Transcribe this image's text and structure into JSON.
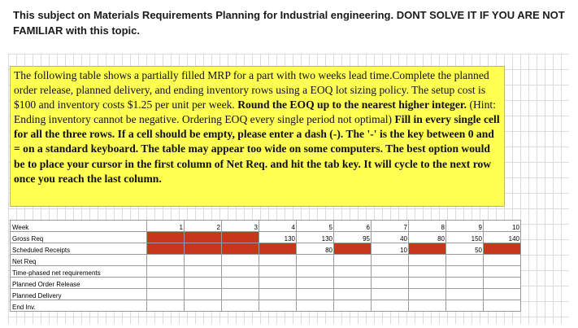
{
  "header": {
    "text": "This subject on Materials Requirements Planning for Industrial engineering. DONT SOLVE IT IF YOU ARE NOT FAMILIAR with this topic."
  },
  "problem": {
    "p1": "The following table shows a partially filled MRP for a part with two weeks lead time.Complete the planned order release, planned delivery, and ending inventory rows using a EOQ lot sizing policy. The setup cost is $100 and inventory costs $1.25 per unit per week. ",
    "b1": "Round the EOQ up to the nearest higher integer.",
    "p2": " (Hint: Ending inventory cannot be negative. Ordering EOQ every single period not optimal) ",
    "b2": "Fill in every single cell for all the three rows. If a cell should be empty, please enter a dash (-). The '-' is the key between 0 and = on a standard keyboard. The table may appear too wide on some computers. The best option would be to place your cursor in the first column of Net Req. and hit the tab key. It will cycle to the next row once you reach the last column."
  },
  "colors": {
    "problem_bg": "#ffff52",
    "red_cell": "#c8361c"
  },
  "table": {
    "rows": [
      {
        "label": "Week",
        "cells": [
          "1",
          "2",
          "3",
          "4",
          "5",
          "6",
          "7",
          "8",
          "9",
          "10"
        ]
      },
      {
        "label": "Gross Req",
        "cells": [
          "",
          "",
          "",
          "130",
          "130",
          "95",
          "40",
          "80",
          "150",
          "140"
        ]
      },
      {
        "label": "Scheduled Receipts",
        "cells": [
          "",
          "",
          "",
          "",
          "80",
          "",
          "10",
          "",
          "50",
          ""
        ]
      },
      {
        "label": "Net Req",
        "cells": [
          "",
          "",
          "",
          "",
          "",
          "",
          "",
          "",
          "",
          ""
        ]
      },
      {
        "label": "Time-phased net requirements",
        "cells": [
          "",
          "",
          "",
          "",
          "",
          "",
          "",
          "",
          "",
          ""
        ]
      },
      {
        "label": "Planned Order Release",
        "cells": [
          "",
          "",
          "",
          "",
          "",
          "",
          "",
          "",
          "",
          ""
        ]
      },
      {
        "label": "Planned Delivery",
        "cells": [
          "",
          "",
          "",
          "",
          "",
          "",
          "",
          "",
          "",
          ""
        ]
      },
      {
        "label": "End Inv.",
        "cells": [
          "",
          "",
          "",
          "",
          "",
          "",
          "",
          "",
          "",
          ""
        ]
      }
    ],
    "red_cells": [
      [
        1,
        0
      ],
      [
        1,
        1
      ],
      [
        1,
        2
      ],
      [
        2,
        0
      ],
      [
        2,
        1
      ],
      [
        2,
        2
      ],
      [
        2,
        3
      ],
      [
        2,
        5
      ],
      [
        2,
        7
      ],
      [
        2,
        9
      ]
    ]
  }
}
